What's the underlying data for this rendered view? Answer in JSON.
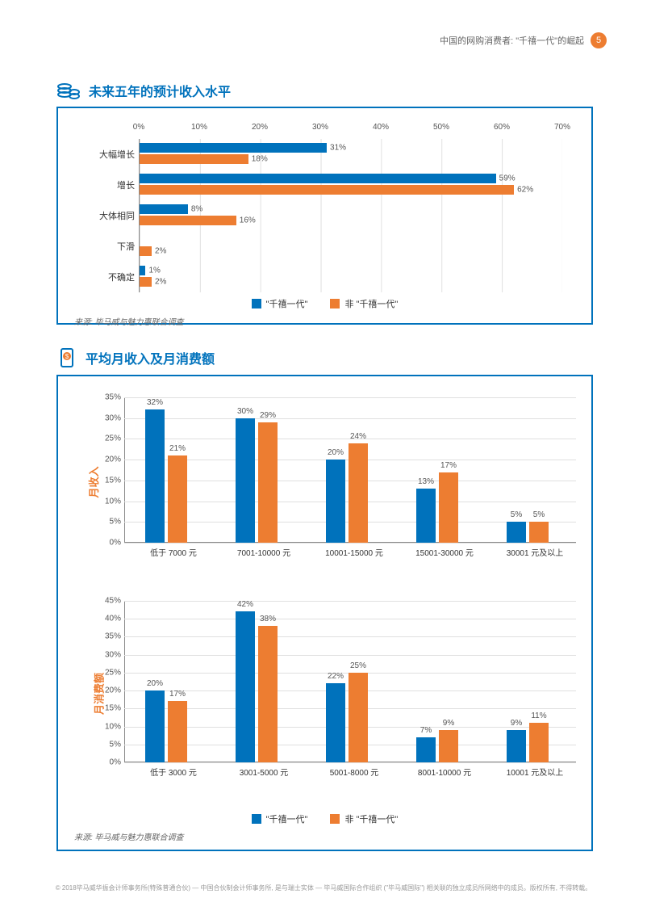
{
  "header": {
    "title": "中国的网购消费者: \"千禧一代\"的崛起",
    "page": "5"
  },
  "colors": {
    "blue": "#0072bc",
    "orange": "#ed7d31",
    "grid": "#e0e0e0",
    "text": "#333333",
    "axis": "#888888",
    "bg": "#ffffff"
  },
  "source": "来源: 毕马威与魅力惠联合调查",
  "legend": {
    "a": "\"千禧一代\"",
    "b": "非 \"千禧一代\""
  },
  "chart1": {
    "title": "未来五年的预计收入水平",
    "type": "horizontal-bar",
    "xmax": 70,
    "xtick_step": 10,
    "categories": [
      "大幅增长",
      "增长",
      "大体相同",
      "下滑",
      "不确定"
    ],
    "series": [
      {
        "name": "millennial",
        "color": "#0072bc",
        "values": [
          31,
          59,
          8,
          0,
          1
        ]
      },
      {
        "name": "non-millennial",
        "color": "#ed7d31",
        "values": [
          18,
          62,
          16,
          2,
          2
        ]
      }
    ],
    "labels": [
      [
        "31%",
        "18%"
      ],
      [
        "59%",
        "62%"
      ],
      [
        "8%",
        "16%"
      ],
      [
        "",
        "2%"
      ],
      [
        "1%",
        "2%"
      ]
    ]
  },
  "chart2": {
    "title": "平均月收入及月消费额",
    "sub1": {
      "ylabel": "月收入",
      "ymax": 35,
      "ytick_step": 5,
      "categories": [
        "低于 7000 元",
        "7001-10000 元",
        "10001-15000 元",
        "15001-30000 元",
        "30001 元及以上"
      ],
      "series": [
        {
          "name": "millennial",
          "color": "#0072bc",
          "values": [
            32,
            30,
            20,
            13,
            5
          ]
        },
        {
          "name": "non-millennial",
          "color": "#ed7d31",
          "values": [
            21,
            29,
            24,
            17,
            5
          ]
        }
      ]
    },
    "sub2": {
      "ylabel": "月消费额",
      "ymax": 45,
      "ytick_step": 5,
      "categories": [
        "低于 3000 元",
        "3001-5000 元",
        "5001-8000 元",
        "8001-10000 元",
        "10001 元及以上"
      ],
      "series": [
        {
          "name": "millennial",
          "color": "#0072bc",
          "values": [
            20,
            42,
            22,
            7,
            9
          ]
        },
        {
          "name": "non-millennial",
          "color": "#ed7d31",
          "values": [
            17,
            38,
            25,
            9,
            11
          ]
        }
      ]
    }
  },
  "footer": "© 2018毕马威华振会计师事务所(特殊普通合伙) — 中国合伙制会计师事务所, 是与瑞士实体 — 毕马威国际合作组织 (\"毕马威国际\") 相关联的独立成员所网络中的成员。版权所有, 不得转载。"
}
